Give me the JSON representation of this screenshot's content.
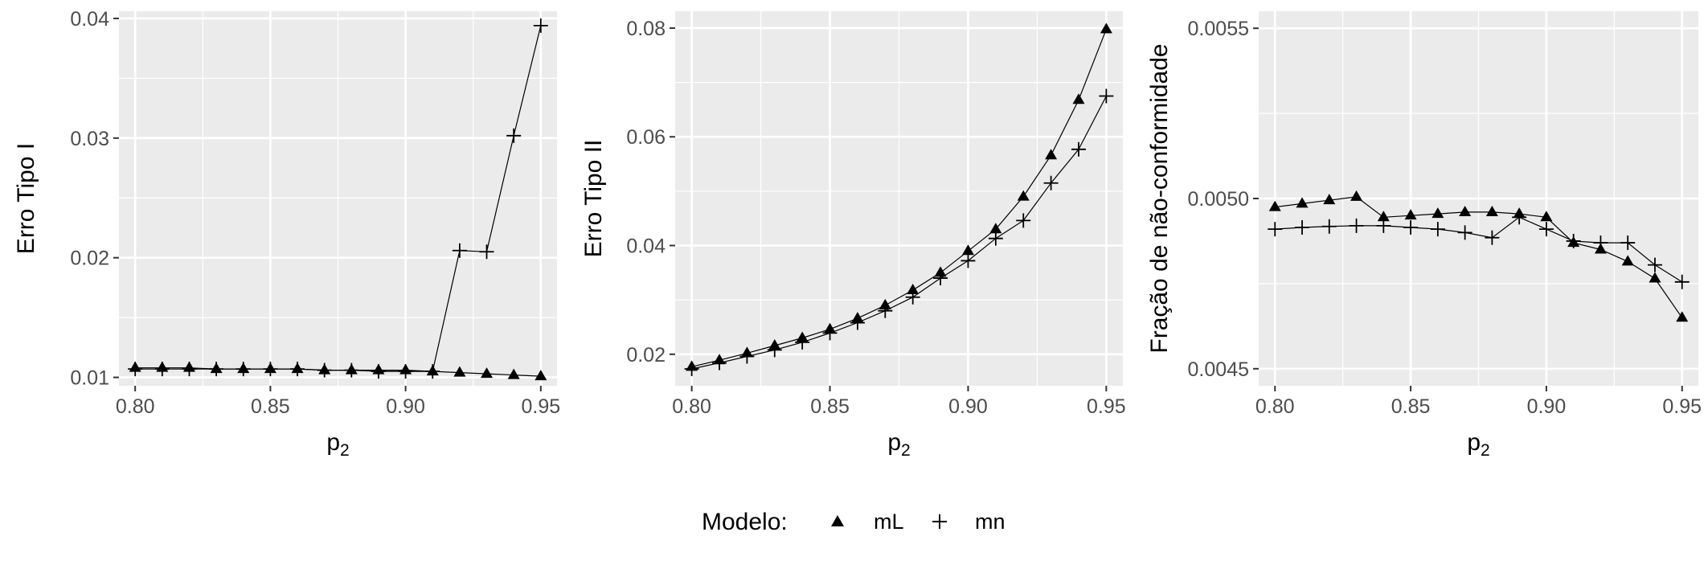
{
  "chart_data": [
    {
      "type": "line",
      "xlabel": "p",
      "xlabel_sub": "2",
      "ylabel": "Erro Tipo I",
      "xlim": [
        0.794,
        0.956
      ],
      "ylim": [
        0.0093,
        0.0406
      ],
      "x_ticks": [
        0.8,
        0.85,
        0.9,
        0.95
      ],
      "x_tick_labels": [
        "0.80",
        "0.85",
        "0.90",
        "0.95"
      ],
      "y_ticks": [
        0.01,
        0.02,
        0.03,
        0.04
      ],
      "y_tick_labels": [
        "0.01",
        "0.02",
        "0.03",
        "0.04"
      ],
      "x": [
        0.8,
        0.81,
        0.82,
        0.83,
        0.84,
        0.85,
        0.86,
        0.87,
        0.88,
        0.89,
        0.9,
        0.91,
        0.92,
        0.93,
        0.94,
        0.95
      ],
      "series": [
        {
          "name": "mL",
          "marker": "triangle",
          "values": [
            0.0108,
            0.0108,
            0.0108,
            0.0107,
            0.0107,
            0.0107,
            0.0107,
            0.0106,
            0.0106,
            0.0106,
            0.0106,
            0.0105,
            0.0104,
            0.0103,
            0.0102,
            0.0101
          ]
        },
        {
          "name": "mn",
          "marker": "plus",
          "values": [
            0.0107,
            0.0107,
            0.0107,
            0.0107,
            0.0107,
            0.0107,
            0.0107,
            0.0106,
            0.0106,
            0.0105,
            0.0105,
            0.0105,
            0.0206,
            0.0205,
            0.0302,
            0.0394
          ]
        }
      ],
      "grid": true
    },
    {
      "type": "line",
      "xlabel": "p",
      "xlabel_sub": "2",
      "ylabel": "Erro Tipo II",
      "xlim": [
        0.794,
        0.956
      ],
      "ylim": [
        0.0142,
        0.0831
      ],
      "x_ticks": [
        0.8,
        0.85,
        0.9,
        0.95
      ],
      "x_tick_labels": [
        "0.80",
        "0.85",
        "0.90",
        "0.95"
      ],
      "y_ticks": [
        0.02,
        0.04,
        0.06,
        0.08
      ],
      "y_tick_labels": [
        "0.02",
        "0.04",
        "0.06",
        "0.08"
      ],
      "x": [
        0.8,
        0.81,
        0.82,
        0.83,
        0.84,
        0.85,
        0.86,
        0.87,
        0.88,
        0.89,
        0.9,
        0.91,
        0.92,
        0.93,
        0.94,
        0.95
      ],
      "series": [
        {
          "name": "mL",
          "marker": "triangle",
          "values": [
            0.0177,
            0.0189,
            0.0202,
            0.0216,
            0.023,
            0.0246,
            0.0266,
            0.029,
            0.0318,
            0.035,
            0.039,
            0.043,
            0.049,
            0.0566,
            0.0668,
            0.0798
          ]
        },
        {
          "name": "mn",
          "marker": "plus",
          "values": [
            0.0173,
            0.0184,
            0.0196,
            0.0208,
            0.0222,
            0.0239,
            0.0258,
            0.028,
            0.0305,
            0.034,
            0.0372,
            0.0413,
            0.0446,
            0.0515,
            0.0577,
            0.0675
          ]
        }
      ],
      "grid": true
    },
    {
      "type": "line",
      "xlabel": "p",
      "xlabel_sub": "2",
      "ylabel": "Fração de não-conformidade",
      "xlim": [
        0.794,
        0.956
      ],
      "ylim": [
        0.00445,
        0.00555
      ],
      "x_ticks": [
        0.8,
        0.85,
        0.9,
        0.95
      ],
      "x_tick_labels": [
        "0.80",
        "0.85",
        "0.90",
        "0.95"
      ],
      "y_ticks": [
        0.0045,
        0.005,
        0.0055
      ],
      "y_tick_labels": [
        "0.0045",
        "0.0050",
        "0.0055"
      ],
      "x": [
        0.8,
        0.81,
        0.82,
        0.83,
        0.84,
        0.85,
        0.86,
        0.87,
        0.88,
        0.89,
        0.9,
        0.91,
        0.92,
        0.93,
        0.94,
        0.95
      ],
      "series": [
        {
          "name": "mL",
          "marker": "triangle",
          "values": [
            0.004975,
            0.004985,
            0.004995,
            0.005005,
            0.004945,
            0.00495,
            0.004955,
            0.00496,
            0.00496,
            0.004955,
            0.004945,
            0.00487,
            0.00485,
            0.004815,
            0.004765,
            0.00465
          ]
        },
        {
          "name": "mn",
          "marker": "plus",
          "values": [
            0.00491,
            0.004915,
            0.004918,
            0.00492,
            0.00492,
            0.004915,
            0.00491,
            0.0049,
            0.004885,
            0.004945,
            0.00491,
            0.004875,
            0.00487,
            0.00487,
            0.004805,
            0.004755
          ]
        }
      ],
      "grid": true
    }
  ],
  "legend": {
    "title": "Modelo:",
    "placement": "bottom",
    "items": [
      {
        "label": "mL",
        "marker": "triangle"
      },
      {
        "label": "mn",
        "marker": "plus"
      }
    ]
  },
  "colors": {
    "panel_bg": "#EBEBEB",
    "grid": "#FFFFFF",
    "line": "#000000",
    "tick_text": "#4D4D4D"
  }
}
